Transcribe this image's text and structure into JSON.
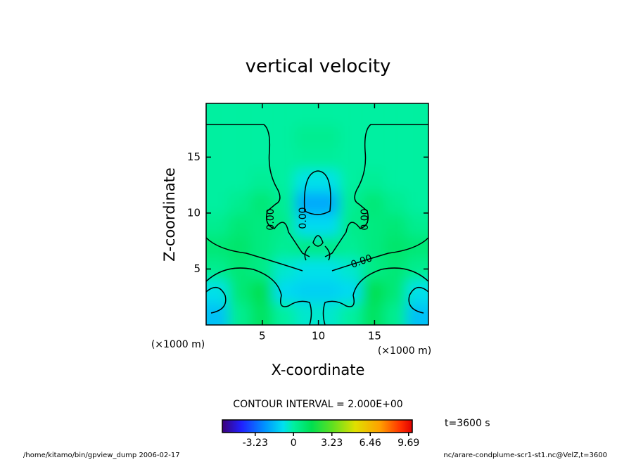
{
  "chart_data": {
    "type": "heatmap",
    "title": "vertical velocity",
    "x_label": "X-coordinate",
    "y_label": "Z-coordinate",
    "x_unit": "(×1000 m)",
    "y_unit": "(×1000 m)",
    "xlim": [
      0,
      19.8
    ],
    "ylim": [
      0,
      19.8
    ],
    "xticks": [
      5,
      10,
      15
    ],
    "yticks": [
      5,
      10,
      15
    ],
    "x": [
      0.99,
      2.97,
      4.95,
      6.93,
      8.91,
      10.89,
      12.87,
      14.85,
      16.83,
      18.81
    ],
    "y": [
      0.99,
      2.97,
      4.95,
      6.93,
      8.91,
      10.89,
      12.87,
      14.85,
      16.83,
      18.81
    ],
    "z": [
      [
        -1.5,
        0.3,
        1.2,
        0,
        -0.5,
        -0.5,
        0,
        1.2,
        0.3,
        -1.5
      ],
      [
        -0.8,
        0.8,
        1.5,
        -1,
        -1.2,
        -1.2,
        -1,
        1.5,
        0.8,
        -0.8
      ],
      [
        0.3,
        0.8,
        0.5,
        -0.5,
        -0.8,
        -0.8,
        -0.5,
        0.5,
        0.8,
        0.3
      ],
      [
        0.8,
        1,
        0.6,
        0.2,
        0.5,
        0.5,
        0.2,
        0.6,
        1,
        0.8
      ],
      [
        0.3,
        0.8,
        0.6,
        0.4,
        -1,
        -1,
        0.4,
        0.6,
        0.8,
        0.3
      ],
      [
        0,
        0.3,
        0.8,
        0.2,
        -2,
        -2,
        0.2,
        0.8,
        0.3,
        0
      ],
      [
        0,
        0,
        0.2,
        0,
        -0.8,
        -0.8,
        0,
        0.2,
        0,
        0
      ],
      [
        0,
        0,
        0,
        0,
        0.1,
        0.1,
        0,
        0,
        0,
        0
      ],
      [
        0,
        0,
        0,
        0,
        0.3,
        0.3,
        0,
        0,
        0,
        0
      ],
      [
        0,
        0,
        0,
        0,
        0,
        0,
        0,
        0,
        0,
        0
      ]
    ],
    "contour_labels": [
      "0.00",
      "0.00",
      "0.00",
      "0.00"
    ],
    "contour_interval_label": "CONTOUR INTERVAL = 2.000E+00",
    "colorbar": {
      "clim": [
        -6,
        10
      ],
      "ticks": [
        -3.23,
        0,
        3.23,
        6.46,
        9.69
      ]
    },
    "time_label": "t=3600 s",
    "footer_left": "/home/kitamo/bin/gpview_dump  2006-02-17",
    "footer_right": "nc/arare-condplume-scr1-st1.nc@VelZ,t=3600"
  }
}
